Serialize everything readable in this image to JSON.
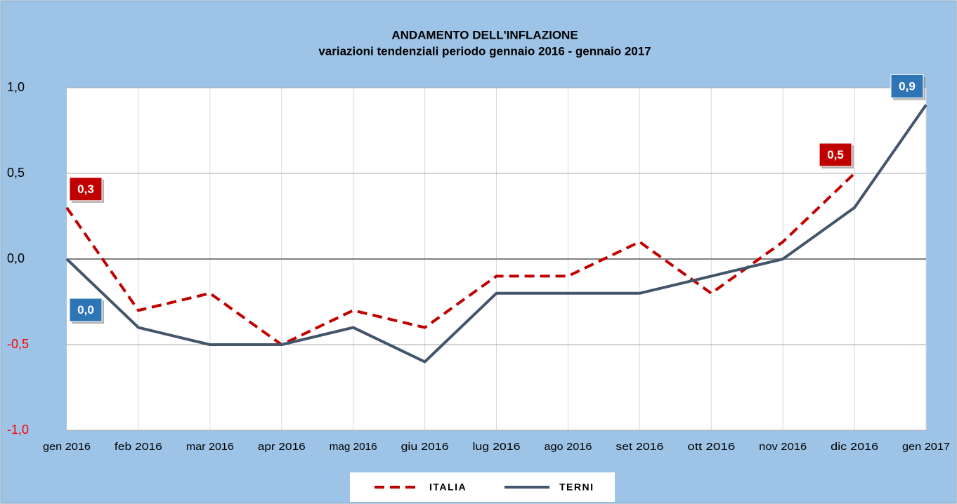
{
  "chart_data": {
    "type": "line",
    "title": "ANDAMENTO DELL'INFLAZIONE",
    "subtitle": "variazioni tendenziali periodo gennaio 2016 - gennaio 2017",
    "categories": [
      "gen 2016",
      "feb 2016",
      "mar 2016",
      "apr 2016",
      "mag 2016",
      "giu 2016",
      "lug 2016",
      "ago 2016",
      "set 2016",
      "ott 2016",
      "nov 2016",
      "dic 2016",
      "gen 2017"
    ],
    "series": [
      {
        "name": "ITALIA",
        "color": "#c00000",
        "line_style": "dashed",
        "values": [
          0.3,
          -0.3,
          -0.2,
          -0.5,
          -0.3,
          -0.4,
          -0.1,
          -0.1,
          0.1,
          -0.2,
          0.1,
          0.5,
          null
        ],
        "value_labels": [
          "0,3",
          null,
          null,
          null,
          null,
          null,
          null,
          null,
          null,
          null,
          null,
          "0,5",
          null
        ]
      },
      {
        "name": "TERNI",
        "color": "#44546a",
        "label_color": "#2e75b6",
        "line_style": "solid",
        "values": [
          0.0,
          -0.4,
          -0.5,
          -0.5,
          -0.4,
          -0.6,
          -0.2,
          -0.2,
          -0.2,
          -0.1,
          0.0,
          0.3,
          0.9
        ],
        "value_labels": [
          "0,0",
          null,
          null,
          null,
          null,
          null,
          null,
          null,
          null,
          null,
          null,
          null,
          "0,9"
        ]
      }
    ],
    "ylim": [
      -1.0,
      1.0
    ],
    "yticks": [
      {
        "value": -1.0,
        "label": "-1,0"
      },
      {
        "value": -0.5,
        "label": "-0,5"
      },
      {
        "value": 0.0,
        "label": "0,0"
      },
      {
        "value": 0.5,
        "label": "0,5"
      },
      {
        "value": 1.0,
        "label": "1,0"
      }
    ],
    "negative_tick_color": "#ff0000",
    "grid": true,
    "legend": "bottom"
  }
}
